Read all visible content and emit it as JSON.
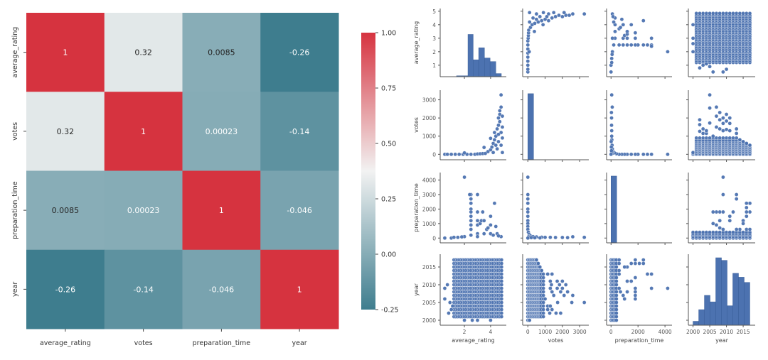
{
  "chart_data": [
    {
      "type": "heatmap",
      "variables": [
        "average_rating",
        "votes",
        "preparation_time",
        "year"
      ],
      "matrix": [
        [
          1,
          0.32,
          0.0085,
          -0.26
        ],
        [
          0.32,
          1,
          0.00023,
          -0.14
        ],
        [
          0.0085,
          0.00023,
          1,
          -0.046
        ],
        [
          -0.26,
          -0.14,
          -0.046,
          1
        ]
      ],
      "cell_labels": [
        [
          "1",
          "0.32",
          "0.0085",
          "-0.26"
        ],
        [
          "0.32",
          "1",
          "0.00023",
          "-0.14"
        ],
        [
          "0.0085",
          "0.00023",
          "1",
          "-0.046"
        ],
        [
          "-0.26",
          "-0.14",
          "-0.046",
          "1"
        ]
      ],
      "colorbar": {
        "range": [
          -0.25,
          1.0
        ],
        "tick_labels": [
          "1.00",
          "0.75",
          "0.50",
          "0.25",
          "0.00",
          "-0.25"
        ],
        "tick_values": [
          1.0,
          0.75,
          0.5,
          0.25,
          0.0,
          -0.25
        ],
        "colors": {
          "low": "#3e7d8e",
          "mid": "#f2f2f2",
          "high": "#d6333f"
        },
        "mid_value": 0.375
      }
    },
    {
      "type": "scatter",
      "kind": "pairplot",
      "marker_color": "#4c72b0",
      "variables": [
        "average_rating",
        "votes",
        "preparation_time",
        "year"
      ],
      "axis_ranges": {
        "average_rating": [
          0.15,
          5.2
        ],
        "votes": [
          -300,
          3530
        ],
        "preparation_time": [
          -330,
          4520
        ],
        "year": [
          1998.6,
          2018.6
        ]
      },
      "y_ticks": {
        "average_rating": [
          "1",
          "2",
          "3",
          "4",
          "5"
        ],
        "votes": [
          "0",
          "1000",
          "2000",
          "3000"
        ],
        "preparation_time": [
          "0",
          "1000",
          "2000",
          "3000",
          "4000"
        ],
        "year": [
          "2000",
          "2005",
          "2010",
          "2015"
        ]
      },
      "x_ticks": {
        "average_rating": [
          "2",
          "4"
        ],
        "votes": [
          "0",
          "1000",
          "2000",
          "3000"
        ],
        "preparation_time": [
          "0",
          "2000",
          "4000"
        ],
        "year": [
          "2000",
          "2005",
          "2010",
          "2015"
        ]
      },
      "histograms": {
        "average_rating": {
          "edges": [
            1.4,
            2.27,
            2.67,
            3.09,
            3.53,
            3.96,
            4.4,
            4.82
          ],
          "relative_heights": [
            2,
            95,
            38,
            65,
            42,
            34,
            7
          ]
        },
        "votes": {
          "edges": [
            0,
            330
          ],
          "relative_heights": [
            100
          ]
        },
        "preparation_time": {
          "edges": [
            0,
            420
          ],
          "relative_heights": [
            100
          ]
        },
        "year": {
          "edges": [
            2000,
            2001.7,
            2003.4,
            2005.1,
            2006.8,
            2008.5,
            2010.2,
            2011.9,
            2013.6,
            2015.3,
            2017
          ],
          "relative_heights": [
            3,
            12,
            23,
            18,
            52,
            50,
            15,
            40,
            37,
            33
          ]
        }
      },
      "pairs": {
        "average_rating|votes": [
          [
            0.5,
            0
          ],
          [
            0.7,
            0
          ],
          [
            1,
            0
          ],
          [
            1.3,
            0
          ],
          [
            1.6,
            0
          ],
          [
            1.9,
            0
          ],
          [
            2.2,
            0
          ],
          [
            2.5,
            0
          ],
          [
            2,
            80
          ],
          [
            2.8,
            0
          ],
          [
            3,
            20
          ],
          [
            3.2,
            30
          ],
          [
            3.4,
            40
          ],
          [
            3.6,
            50
          ],
          [
            3.5,
            380
          ],
          [
            3.8,
            150
          ],
          [
            4,
            880
          ],
          [
            4,
            250
          ],
          [
            4.1,
            400
          ],
          [
            4.2,
            600
          ],
          [
            4.3,
            800
          ],
          [
            4.3,
            1200
          ],
          [
            4.4,
            1000
          ],
          [
            4.5,
            1400
          ],
          [
            4.6,
            1600
          ],
          [
            4.6,
            2000
          ],
          [
            4.7,
            2200
          ],
          [
            4.7,
            2400
          ],
          [
            4.8,
            2600
          ],
          [
            4.8,
            3270
          ],
          [
            4.9,
            1500
          ],
          [
            4.9,
            900
          ],
          [
            4.5,
            300
          ],
          [
            4.8,
            500
          ],
          [
            4.9,
            100
          ],
          [
            4.2,
            100
          ],
          [
            4.6,
            700
          ],
          [
            4.7,
            1800
          ],
          [
            4.8,
            1200
          ],
          [
            4.9,
            2100
          ],
          [
            4.4,
            500
          ],
          [
            4.6,
            1100
          ]
        ],
        "average_rating|preparation_time": [
          [
            0.5,
            0
          ],
          [
            1,
            0
          ],
          [
            1.5,
            50
          ],
          [
            2,
            100
          ],
          [
            2,
            4200
          ],
          [
            2.5,
            3000
          ],
          [
            2.4,
            3000
          ],
          [
            2.5,
            2700
          ],
          [
            2.5,
            2400
          ],
          [
            2.5,
            2000
          ],
          [
            2.5,
            1800
          ],
          [
            2.5,
            1500
          ],
          [
            2.5,
            1200
          ],
          [
            2.5,
            900
          ],
          [
            2.5,
            600
          ],
          [
            3,
            3000
          ],
          [
            3,
            1800
          ],
          [
            3,
            1200
          ],
          [
            3,
            900
          ],
          [
            3.2,
            1000
          ],
          [
            3.3,
            1200
          ],
          [
            3.4,
            1800
          ],
          [
            3.5,
            1200
          ],
          [
            3.7,
            600
          ],
          [
            3.8,
            700
          ],
          [
            4,
            900
          ],
          [
            4,
            1500
          ],
          [
            4.3,
            2400
          ],
          [
            4.4,
            800
          ],
          [
            3,
            300
          ],
          [
            3.5,
            300
          ],
          [
            4,
            300
          ],
          [
            4.5,
            300
          ],
          [
            4.8,
            100
          ],
          [
            3,
            100
          ],
          [
            2.5,
            200
          ],
          [
            4.2,
            200
          ],
          [
            1.2,
            50
          ],
          [
            1.8,
            80
          ],
          [
            4.6,
            150
          ]
        ],
        "average_rating|year": {
          "dense": {
            "rating": [
              1.2,
              4.9
            ],
            "year": [
              2001,
              2017
            ]
          },
          "points": [
            [
              0.5,
              2009
            ],
            [
              0.5,
              2006
            ],
            [
              0.9,
              2005
            ],
            [
              0.7,
              2010
            ],
            [
              2,
              2000
            ],
            [
              2.6,
              2000
            ],
            [
              3,
              2000
            ],
            [
              4,
              2000
            ],
            [
              1,
              2003
            ],
            [
              1.1,
              2004
            ],
            [
              0.8,
              2002
            ]
          ]
        },
        "votes|preparation_time": [
          [
            0,
            4200
          ],
          [
            0,
            3000
          ],
          [
            0,
            2700
          ],
          [
            0,
            2400
          ],
          [
            0,
            2000
          ],
          [
            0,
            1800
          ],
          [
            0,
            1500
          ],
          [
            0,
            1200
          ],
          [
            0,
            1000
          ],
          [
            0,
            800
          ],
          [
            0,
            600
          ],
          [
            30,
            400
          ],
          [
            80,
            250
          ],
          [
            150,
            150
          ],
          [
            300,
            100
          ],
          [
            500,
            80
          ],
          [
            800,
            60
          ],
          [
            1000,
            50
          ],
          [
            1300,
            50
          ],
          [
            1600,
            40
          ],
          [
            2000,
            40
          ],
          [
            2300,
            30
          ],
          [
            2600,
            90
          ],
          [
            3270,
            50
          ],
          [
            50,
            100
          ],
          [
            100,
            50
          ],
          [
            200,
            30
          ],
          [
            0,
            0
          ],
          [
            400,
            20
          ],
          [
            700,
            10
          ]
        ],
        "votes|year": {
          "years": [
            2000,
            2001,
            2002,
            2003,
            2004,
            2005,
            2006,
            2007,
            2008,
            2009,
            2010,
            2011,
            2012,
            2013,
            2014,
            2015,
            2016,
            2017
          ],
          "max_votes": [
            100,
            900,
            1900,
            1400,
            1300,
            3270,
            1000,
            2600,
            2300,
            2000,
            2200,
            2000,
            900,
            1400,
            800,
            700,
            600,
            500
          ]
        },
        "preparation_time|year": {
          "dense": {
            "prep": [
              0,
              400
            ],
            "year": [
              2000,
              2017
            ]
          },
          "points": [
            [
              600,
              2016
            ],
            [
              1200,
              2015
            ],
            [
              1500,
              2016
            ],
            [
              1800,
              2017
            ],
            [
              1800,
              2016
            ],
            [
              1800,
              2012
            ],
            [
              1800,
              2009
            ],
            [
              1800,
              2008
            ],
            [
              1800,
              2007
            ],
            [
              1800,
              2006
            ],
            [
              2100,
              2016
            ],
            [
              2400,
              2017
            ],
            [
              2400,
              2016
            ],
            [
              2700,
              2013
            ],
            [
              3000,
              2013
            ],
            [
              3000,
              2009
            ],
            [
              4200,
              2009
            ],
            [
              1200,
              2011
            ],
            [
              1500,
              2011
            ],
            [
              1000,
              2006
            ],
            [
              900,
              2007
            ],
            [
              1200,
              2008
            ],
            [
              700,
              2008
            ],
            [
              600,
              2009
            ],
            [
              600,
              2014
            ],
            [
              1000,
              2015
            ],
            [
              600,
              2017
            ],
            [
              600,
              2013
            ]
          ]
        }
      }
    }
  ]
}
